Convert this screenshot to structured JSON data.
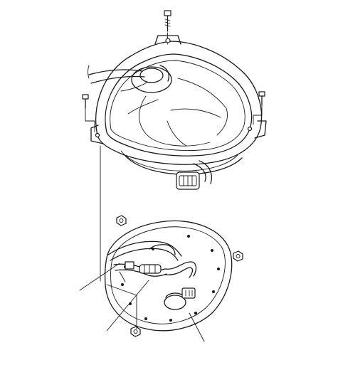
{
  "diagram": {
    "description_parts": [
      "top-bolt-icon",
      "left-bolt-icon",
      "right-bolt-icon",
      "blower-housing",
      "blower-fan",
      "motor-connector",
      "mounting-plate",
      "plate-nut",
      "wire-harness",
      "callout-leaders"
    ],
    "colors": {
      "ink": "#1a1a1a",
      "paper": "#ffffff"
    }
  }
}
